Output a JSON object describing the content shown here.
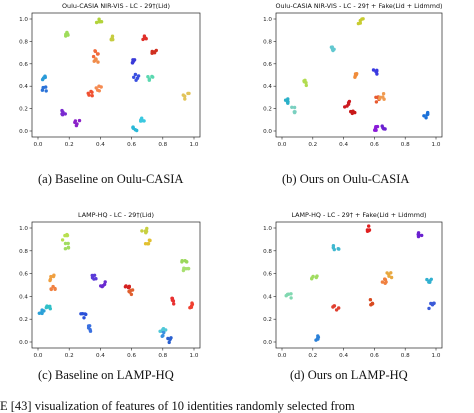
{
  "chart_data": [
    {
      "type": "scatter",
      "title": "Oulu-CASIA NIR-VIS - LC - 29†(Lid)",
      "caption": "(a)  Baseline on Oulu-CASIA",
      "xlim": [
        0,
        1
      ],
      "ylim": [
        0,
        1
      ],
      "xticks": [
        "0.0",
        "0.2",
        "0.4",
        "0.6",
        "0.8",
        "1.0"
      ],
      "yticks": [
        "0.0",
        "0.2",
        "0.4",
        "0.6",
        "0.8",
        "1.0"
      ],
      "grid": false,
      "clusters": [
        {
          "color": "#b2d33a",
          "x": 0.39,
          "y": 0.99
        },
        {
          "color": "#9edc5a",
          "x": 0.19,
          "y": 0.86
        },
        {
          "color": "#c6cc40",
          "x": 0.48,
          "y": 0.84
        },
        {
          "color": "#e0302a",
          "x": 0.69,
          "y": 0.83
        },
        {
          "color": "#f26a3a",
          "x": 0.37,
          "y": 0.69
        },
        {
          "color": "#d03020",
          "x": 0.75,
          "y": 0.71
        },
        {
          "color": "#f08c4a",
          "x": 0.37,
          "y": 0.62
        },
        {
          "color": "#3a3ad8",
          "x": 0.61,
          "y": 0.63
        },
        {
          "color": "#2a9ad8",
          "x": 0.04,
          "y": 0.47
        },
        {
          "color": "#3a50e0",
          "x": 0.63,
          "y": 0.48
        },
        {
          "color": "#5ad8b0",
          "x": 0.72,
          "y": 0.47
        },
        {
          "color": "#2a72d8",
          "x": 0.04,
          "y": 0.37
        },
        {
          "color": "#f58a50",
          "x": 0.39,
          "y": 0.38
        },
        {
          "color": "#f05030",
          "x": 0.33,
          "y": 0.33
        },
        {
          "color": "#e2c45a",
          "x": 0.95,
          "y": 0.31
        },
        {
          "color": "#7a2ad0",
          "x": 0.17,
          "y": 0.17
        },
        {
          "color": "#8a20c8",
          "x": 0.25,
          "y": 0.07
        },
        {
          "color": "#3ac8e0",
          "x": 0.67,
          "y": 0.11
        },
        {
          "color": "#2ab8d8",
          "x": 0.62,
          "y": 0.02
        }
      ]
    },
    {
      "type": "scatter",
      "title": "Oulu-CASIA NIR-VIS - LC - 29† + Fake(Lid + Lidmmd)",
      "caption": "(b)  Ours on Oulu-CASIA",
      "xlim": [
        0,
        1
      ],
      "ylim": [
        0,
        1
      ],
      "xticks": [
        "0.0",
        "0.2",
        "0.4",
        "0.6",
        "0.8",
        "1.0"
      ],
      "yticks": [
        "0.0",
        "0.2",
        "0.4",
        "0.6",
        "0.8",
        "1.0"
      ],
      "grid": false,
      "clusters": [
        {
          "color": "#c8cc30",
          "x": 0.51,
          "y": 0.98
        },
        {
          "color": "#62c8d0",
          "x": 0.32,
          "y": 0.74
        },
        {
          "color": "#f08c3a",
          "x": 0.47,
          "y": 0.5
        },
        {
          "color": "#3a3ae0",
          "x": 0.61,
          "y": 0.53
        },
        {
          "color": "#b2dc50",
          "x": 0.15,
          "y": 0.43
        },
        {
          "color": "#e85a30",
          "x": 0.62,
          "y": 0.28
        },
        {
          "color": "#f09a50",
          "x": 0.65,
          "y": 0.31
        },
        {
          "color": "#2ab0c8",
          "x": 0.02,
          "y": 0.26
        },
        {
          "color": "#cc1a20",
          "x": 0.42,
          "y": 0.24
        },
        {
          "color": "#1a70d8",
          "x": 0.94,
          "y": 0.14
        },
        {
          "color": "#7ad0c0",
          "x": 0.08,
          "y": 0.19
        },
        {
          "color": "#c81818",
          "x": 0.46,
          "y": 0.18
        },
        {
          "color": "#8a1ad8",
          "x": 0.62,
          "y": 0.02
        },
        {
          "color": "#6a20d0",
          "x": 0.67,
          "y": 0.03
        }
      ]
    },
    {
      "type": "scatter",
      "title": "LAMP-HQ - LC - 29†(Lid)",
      "caption": "(c)  Baseline on LAMP-HQ",
      "xlim": [
        0,
        1
      ],
      "ylim": [
        0,
        1
      ],
      "xticks": [
        "0.0",
        "0.2",
        "0.4",
        "0.6",
        "0.8",
        "1.0"
      ],
      "yticks": [
        "0.0",
        "0.2",
        "0.4",
        "0.6",
        "0.8",
        "1.0"
      ],
      "grid": false,
      "clusters": [
        {
          "color": "#c8d040",
          "x": 0.68,
          "y": 0.97
        },
        {
          "color": "#b8e050",
          "x": 0.17,
          "y": 0.92
        },
        {
          "color": "#a0dc60",
          "x": 0.18,
          "y": 0.84
        },
        {
          "color": "#e2c030",
          "x": 0.7,
          "y": 0.88
        },
        {
          "color": "#9ad85a",
          "x": 0.94,
          "y": 0.72
        },
        {
          "color": "#a8e070",
          "x": 0.95,
          "y": 0.64
        },
        {
          "color": "#f0a040",
          "x": 0.09,
          "y": 0.56
        },
        {
          "color": "#5a3ad8",
          "x": 0.36,
          "y": 0.56
        },
        {
          "color": "#6a2ad0",
          "x": 0.42,
          "y": 0.51
        },
        {
          "color": "#d42020",
          "x": 0.57,
          "y": 0.49
        },
        {
          "color": "#f08040",
          "x": 0.1,
          "y": 0.46
        },
        {
          "color": "#e06030",
          "x": 0.59,
          "y": 0.44
        },
        {
          "color": "#e83030",
          "x": 0.86,
          "y": 0.36
        },
        {
          "color": "#f04030",
          "x": 0.98,
          "y": 0.32
        },
        {
          "color": "#2aa0d8",
          "x": 0.02,
          "y": 0.26
        },
        {
          "color": "#30c0c8",
          "x": 0.07,
          "y": 0.3
        },
        {
          "color": "#2a50d8",
          "x": 0.29,
          "y": 0.23
        },
        {
          "color": "#3a70e0",
          "x": 0.32,
          "y": 0.12
        },
        {
          "color": "#3a90e0",
          "x": 0.79,
          "y": 0.07
        },
        {
          "color": "#50c8d8",
          "x": 0.8,
          "y": 0.12
        },
        {
          "color": "#2a60d0",
          "x": 0.85,
          "y": 0.02
        }
      ]
    },
    {
      "type": "scatter",
      "title": "LAMP-HQ - LC - 29† + Fake(Lid + Lidmmd)",
      "caption": "(d)  Ours on LAMP-HQ",
      "xlim": [
        0,
        1
      ],
      "ylim": [
        0,
        1
      ],
      "xticks": [
        "0.0",
        "0.2",
        "0.4",
        "0.6",
        "0.8",
        "1.0"
      ],
      "yticks": [
        "0.0",
        "0.2",
        "0.4",
        "0.6",
        "0.8",
        "1.0"
      ],
      "grid": false,
      "clusters": [
        {
          "color": "#e02020",
          "x": 0.57,
          "y": 0.99
        },
        {
          "color": "#6a20d0",
          "x": 0.9,
          "y": 0.94
        },
        {
          "color": "#40b8d0",
          "x": 0.35,
          "y": 0.82
        },
        {
          "color": "#a0dc60",
          "x": 0.21,
          "y": 0.56
        },
        {
          "color": "#e8a840",
          "x": 0.7,
          "y": 0.59
        },
        {
          "color": "#f08040",
          "x": 0.67,
          "y": 0.54
        },
        {
          "color": "#30b0d0",
          "x": 0.96,
          "y": 0.54
        },
        {
          "color": "#80d8b0",
          "x": 0.04,
          "y": 0.41
        },
        {
          "color": "#e04030",
          "x": 0.35,
          "y": 0.3
        },
        {
          "color": "#3a5ad8",
          "x": 0.97,
          "y": 0.32
        },
        {
          "color": "#d84a20",
          "x": 0.57,
          "y": 0.35
        },
        {
          "color": "#2a80d8",
          "x": 0.22,
          "y": 0.03
        }
      ]
    }
  ],
  "footer_text": "E [43] visualization of features of 10 identities randomly selected from"
}
